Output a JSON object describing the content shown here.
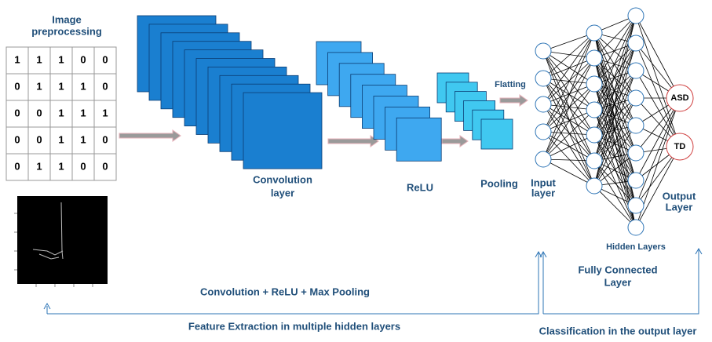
{
  "preprocessing": {
    "title_lines": [
      "Image",
      "preprocessing"
    ],
    "matrix": [
      [
        "1",
        "1",
        "1",
        "0",
        "0"
      ],
      [
        "0",
        "1",
        "1",
        "1",
        "0"
      ],
      [
        "0",
        "0",
        "1",
        "1",
        "1"
      ],
      [
        "0",
        "0",
        "1",
        "1",
        "0"
      ],
      [
        "0",
        "1",
        "1",
        "0",
        "0"
      ]
    ]
  },
  "convolution": {
    "label_lines": [
      "Convolution",
      "layer"
    ]
  },
  "relu": {
    "label": "ReLU"
  },
  "pooling": {
    "label": "Pooling"
  },
  "flatting": {
    "label": "Flatting"
  },
  "network": {
    "input_label_lines": [
      "Input",
      "layer"
    ],
    "hidden_label": "Hidden Layers",
    "output_label_lines": [
      "Output",
      "Layer"
    ],
    "outputs": [
      "ASD",
      "TD"
    ],
    "fc_label_lines": [
      "Fully Connected",
      "Layer"
    ]
  },
  "bottom": {
    "stage_label": "Convolution + ReLU + Max Pooling",
    "feature_extraction": "Feature Extraction in multiple hidden layers",
    "classification": "Classification in the output layer"
  }
}
